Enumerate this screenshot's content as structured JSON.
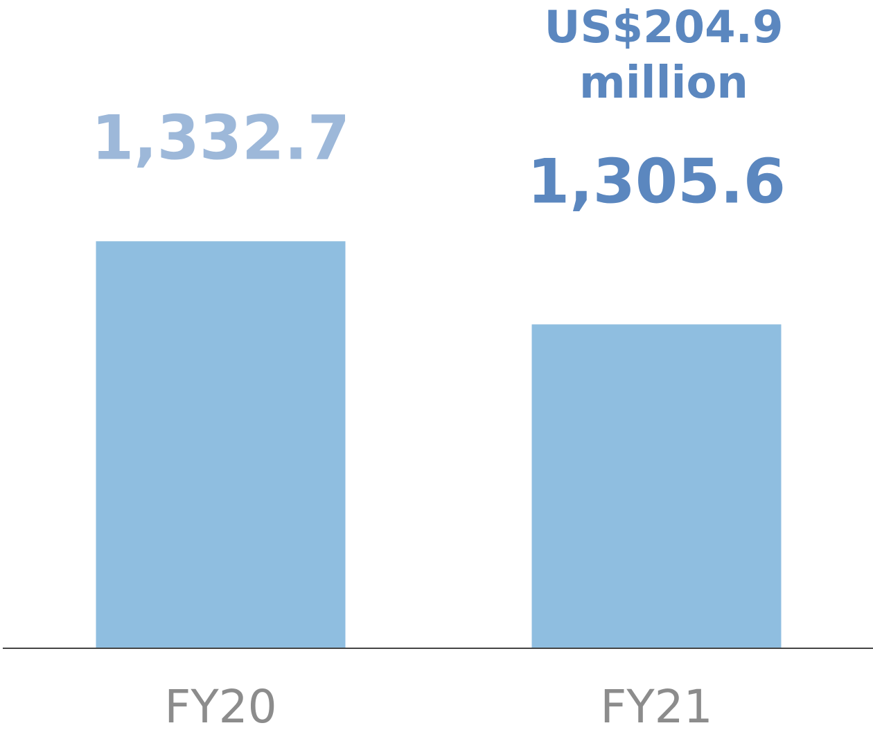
{
  "chart_data": {
    "type": "bar",
    "categories": [
      "FY20",
      "FY21"
    ],
    "values": [
      1332.7,
      1305.6
    ],
    "value_labels": [
      "1,332.7",
      "1,305.6"
    ],
    "value_label_colors": [
      "#9db8d9",
      "#5b87bf"
    ],
    "color": "#8fbee0",
    "ylim": [
      1200,
      1340
    ],
    "annotation": "US$204.9 million",
    "annotation_color": "#5b87bf"
  }
}
